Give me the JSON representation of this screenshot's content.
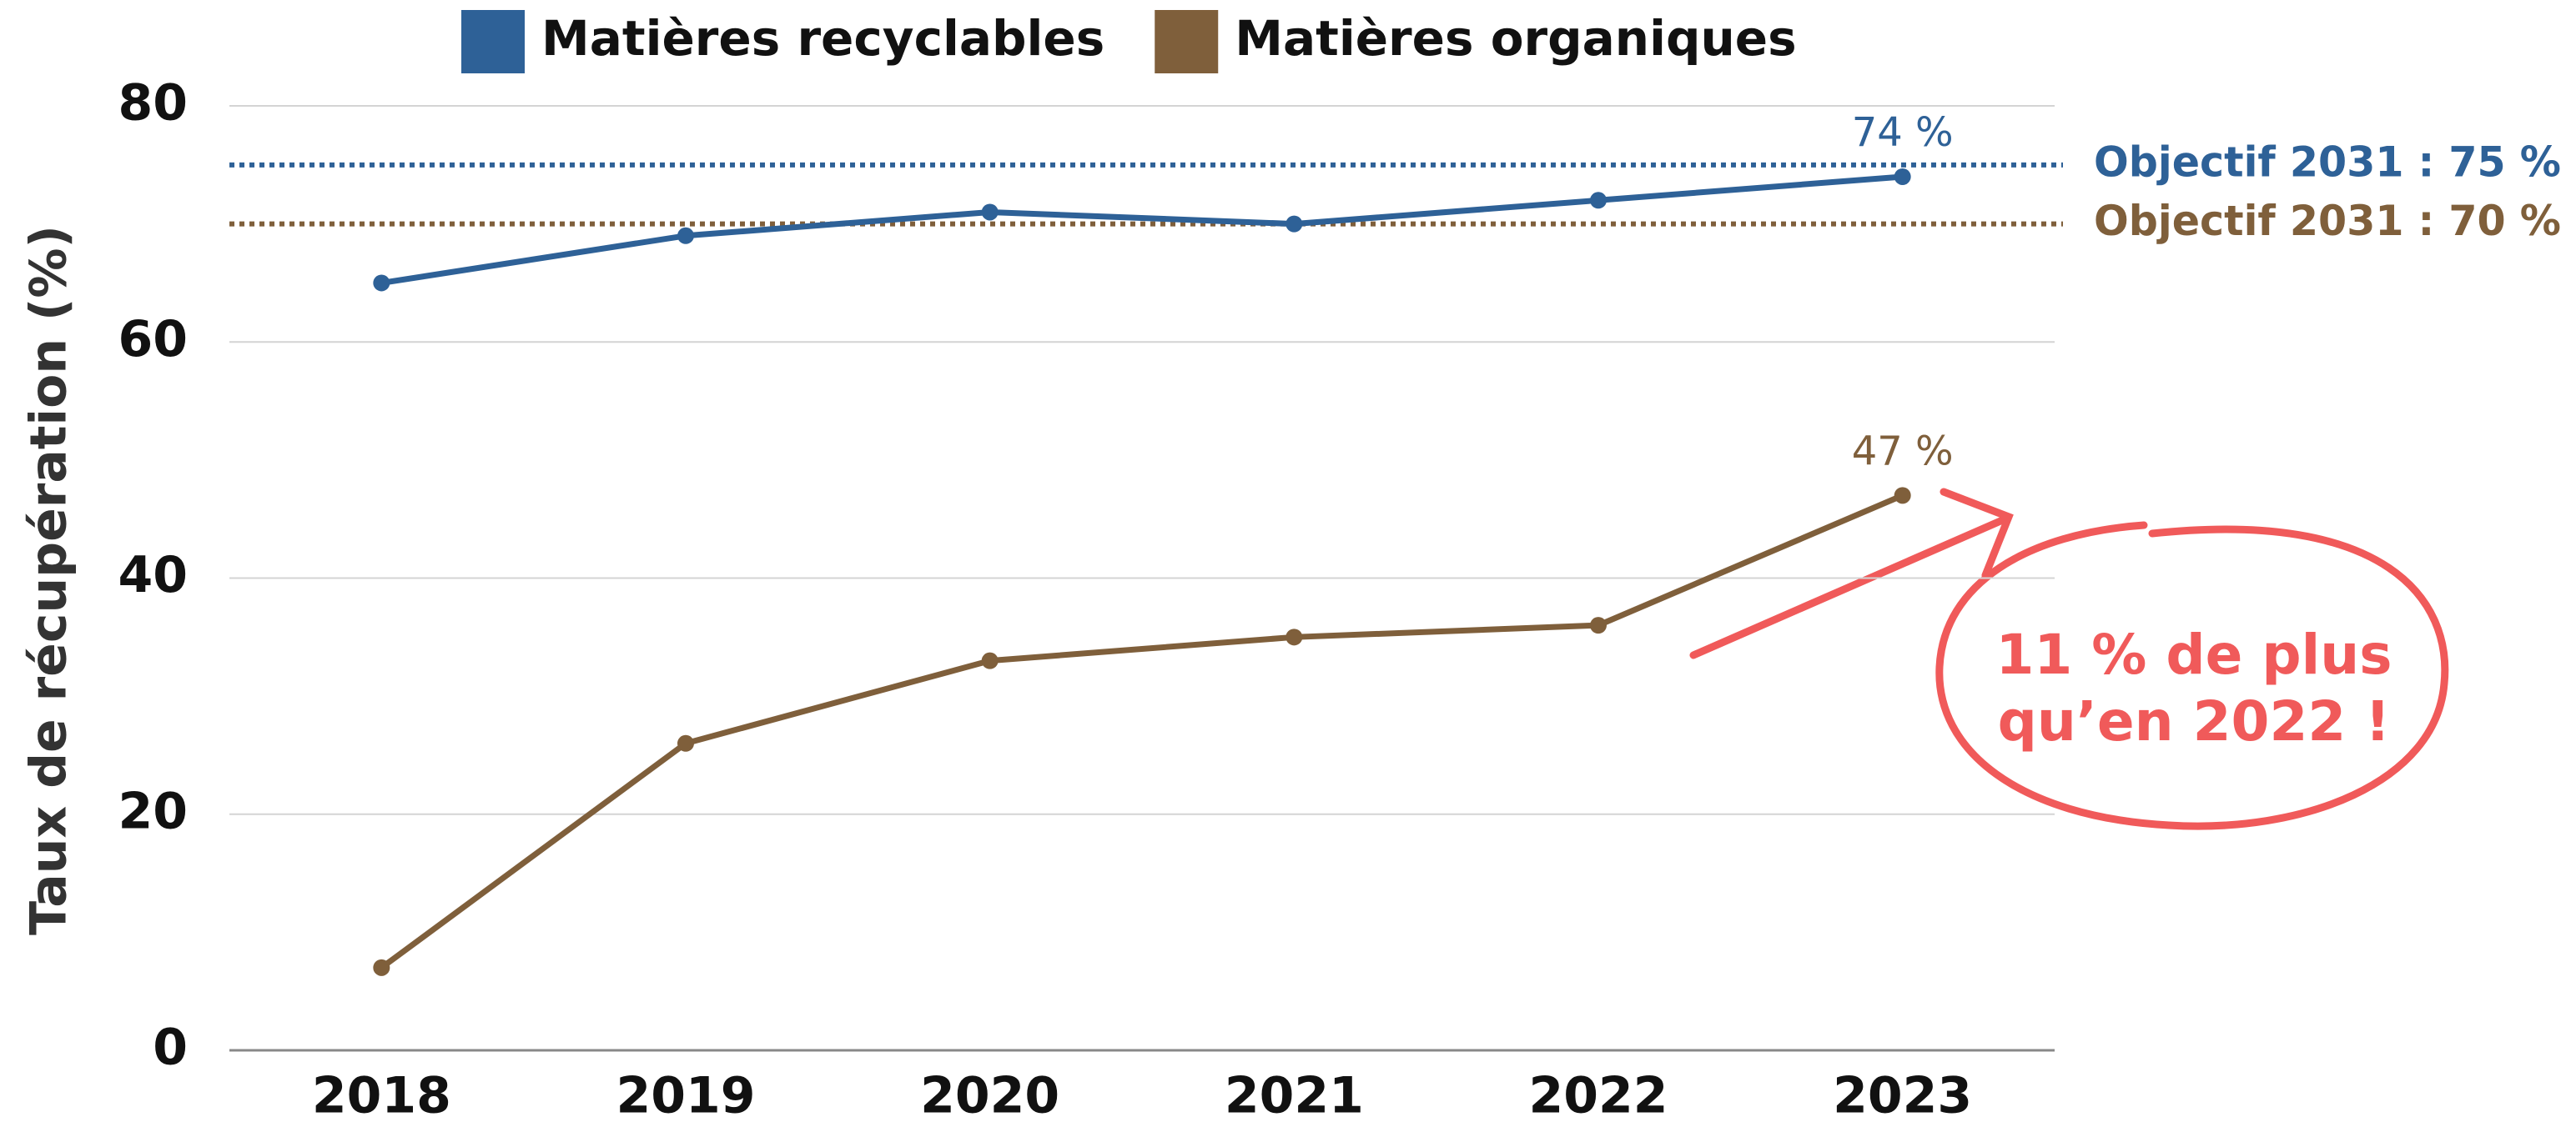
{
  "chart_data": {
    "type": "line",
    "y_label": "Taux de récupération (%)",
    "categories": [
      "2018",
      "2019",
      "2020",
      "2021",
      "2022",
      "2023"
    ],
    "series": [
      {
        "name": "Matières recyclables",
        "color": "#2e6197",
        "values": [
          65,
          69,
          71,
          70,
          72,
          74
        ],
        "value_labels": [
          null,
          null,
          null,
          null,
          null,
          "74 %"
        ]
      },
      {
        "name": "Matières organiques",
        "color": "#7f5f3b",
        "values": [
          7,
          26,
          33,
          35,
          36,
          47
        ],
        "value_labels": [
          null,
          null,
          null,
          null,
          null,
          "47 %"
        ]
      }
    ],
    "targets": [
      {
        "value": 75,
        "label": "Objectif 2031 : 75 %",
        "color": "#2e6197"
      },
      {
        "value": 70,
        "label": "Objectif 2031 : 70 %",
        "color": "#7f5f3b"
      }
    ],
    "annotation": {
      "lines": [
        "11 % de plus",
        "qu’en 2022 !"
      ],
      "color": "#f05a5a"
    },
    "ylim": [
      0,
      80
    ],
    "yticks": [
      0,
      20,
      40,
      60,
      80
    ],
    "grid": true
  }
}
